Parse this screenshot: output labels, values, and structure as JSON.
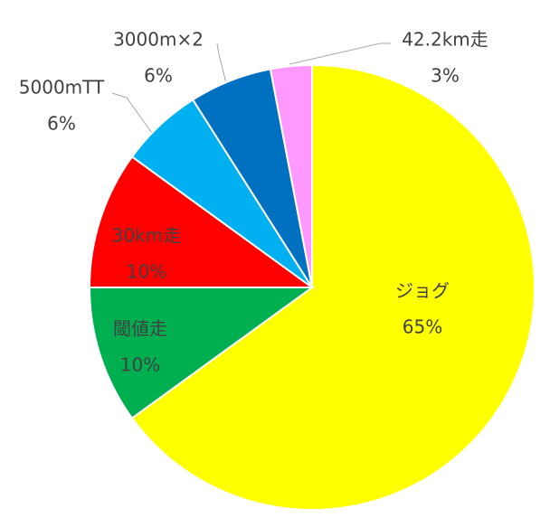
{
  "chart_data": {
    "type": "pie",
    "categories": [
      "ジョグ",
      "閾値走",
      "30km走",
      "5000mTT",
      "3000m×2",
      "42.2km走"
    ],
    "values": [
      65,
      10,
      10,
      6,
      6,
      3
    ],
    "value_labels": [
      "65%",
      "10%",
      "10%",
      "6%",
      "6%",
      "3%"
    ],
    "colors": [
      "#ffff00",
      "#00b050",
      "#ff0000",
      "#00b0f0",
      "#0070c0",
      "#ff99ff"
    ]
  }
}
